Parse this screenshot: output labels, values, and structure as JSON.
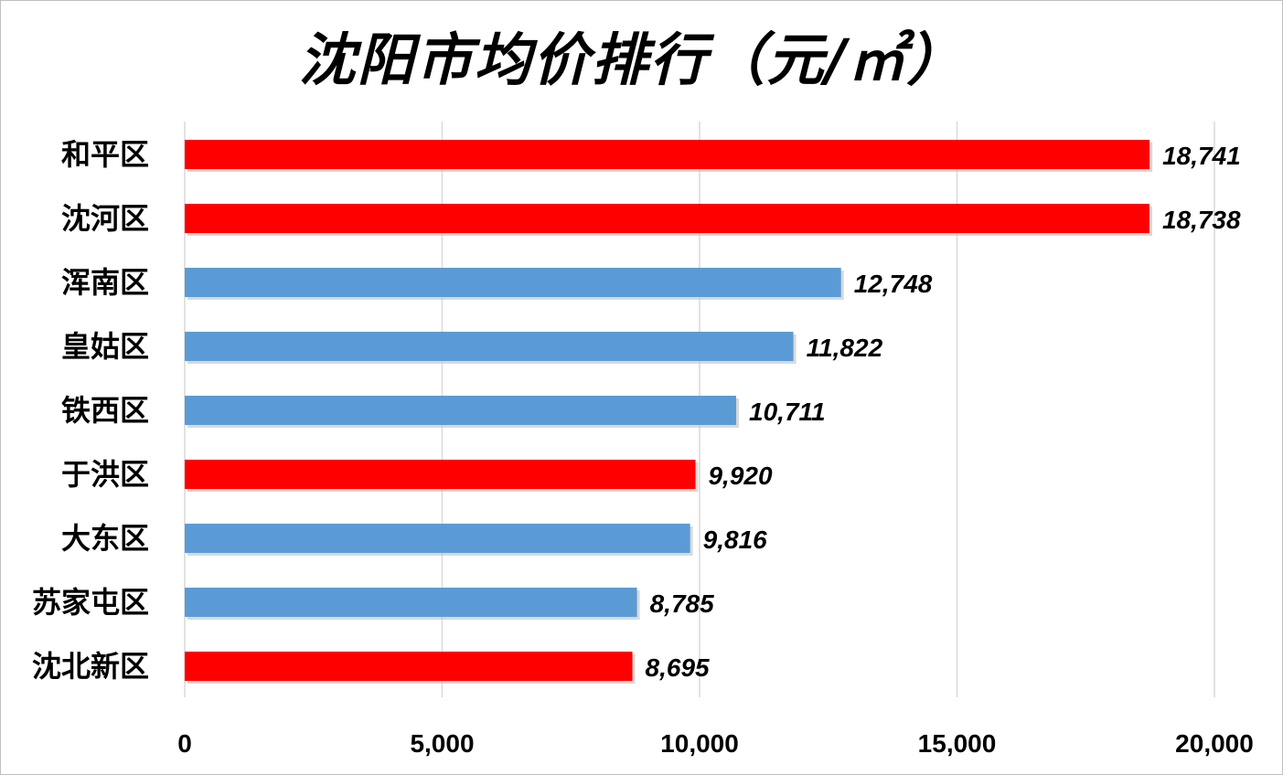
{
  "chart_data": {
    "type": "bar",
    "orientation": "horizontal",
    "title": "沈阳市均价排行（元/㎡）",
    "categories": [
      "和平区",
      "沈河区",
      "浑南区",
      "皇姑区",
      "铁西区",
      "于洪区",
      "大东区",
      "苏家屯区",
      "沈北新区"
    ],
    "values": [
      18741,
      18738,
      12748,
      11822,
      10711,
      9920,
      9816,
      8785,
      8695
    ],
    "value_labels": [
      "18,741",
      "18,738",
      "12,748",
      "11,822",
      "10,711",
      "9,920",
      "9,816",
      "8,785",
      "8,695"
    ],
    "bar_colors": [
      "#ff0000",
      "#ff0000",
      "#5b9bd5",
      "#5b9bd5",
      "#5b9bd5",
      "#ff0000",
      "#5b9bd5",
      "#5b9bd5",
      "#ff0000"
    ],
    "xlim": [
      0,
      20000
    ],
    "xticks": [
      0,
      5000,
      10000,
      15000,
      20000
    ],
    "xtick_labels": [
      "0",
      "5,000",
      "10,000",
      "15,000",
      "20,000"
    ],
    "xlabel": "",
    "ylabel": "",
    "grid": "vertical",
    "legend": "none",
    "colors": {
      "highlight": "#ff0000",
      "default": "#5b9bd5",
      "grid": "#d9d9d9"
    }
  }
}
